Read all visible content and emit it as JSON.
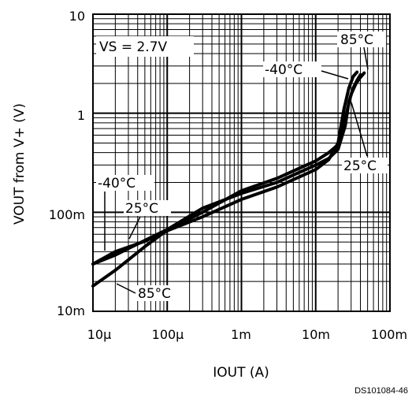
{
  "chart_data": {
    "type": "line",
    "xscale": "log",
    "yscale": "log",
    "xlim": [
      1e-05,
      0.1
    ],
    "ylim": [
      0.01,
      10
    ],
    "grid": true,
    "xlabel": "IOUT (A)",
    "ylabel": "VOUT from V+ (V)",
    "x_ticks": [
      {
        "value": 1e-05,
        "label": "10µ"
      },
      {
        "value": 0.0001,
        "label": "100µ"
      },
      {
        "value": 0.001,
        "label": "1m"
      },
      {
        "value": 0.01,
        "label": "10m"
      },
      {
        "value": 0.1,
        "label": "100m"
      }
    ],
    "y_ticks": [
      {
        "value": 0.01,
        "label": "10m"
      },
      {
        "value": 0.1,
        "label": "100m"
      },
      {
        "value": 1,
        "label": "1"
      },
      {
        "value": 10,
        "label": "10"
      }
    ],
    "annotations": {
      "supply": "VS = 2.7V",
      "figure_code": "DS101084-46"
    },
    "series": [
      {
        "name": "-40°C",
        "x": [
          1e-05,
          2e-05,
          5e-05,
          0.0001,
          0.0003,
          0.001,
          0.003,
          0.01,
          0.015,
          0.02,
          0.024,
          0.028,
          0.032,
          0.036
        ],
        "y": [
          0.03,
          0.04,
          0.051,
          0.065,
          0.09,
          0.135,
          0.18,
          0.27,
          0.34,
          0.5,
          1.1,
          1.8,
          2.35,
          2.6
        ]
      },
      {
        "name": "25°C",
        "x": [
          1e-05,
          2e-05,
          5e-05,
          0.0001,
          0.0003,
          0.001,
          0.003,
          0.01,
          0.015,
          0.02,
          0.025,
          0.028,
          0.032,
          0.036,
          0.04
        ],
        "y": [
          0.03,
          0.037,
          0.052,
          0.067,
          0.11,
          0.155,
          0.2,
          0.3,
          0.35,
          0.43,
          0.75,
          1.3,
          1.8,
          2.15,
          2.45
        ]
      },
      {
        "name": "85°C",
        "x": [
          1e-05,
          2e-05,
          5e-05,
          0.0001,
          0.0003,
          0.001,
          0.003,
          0.01,
          0.015,
          0.02,
          0.025,
          0.03,
          0.035,
          0.04,
          0.045
        ],
        "y": [
          0.018,
          0.026,
          0.045,
          0.066,
          0.1,
          0.165,
          0.22,
          0.33,
          0.4,
          0.48,
          0.9,
          1.55,
          2.0,
          2.3,
          2.55
        ]
      }
    ],
    "series_labels": [
      "-40°C",
      "25°C",
      "85°C",
      "-40°C",
      "25°C",
      "85°C"
    ]
  }
}
